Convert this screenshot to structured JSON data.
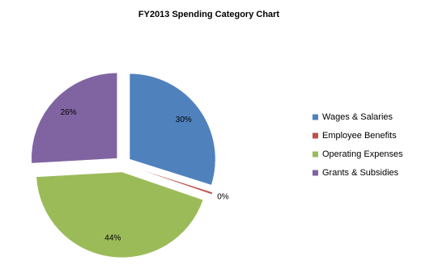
{
  "chart_data": {
    "type": "pie",
    "title": "FY2013 Spending Category Chart",
    "categories": [
      "Wages & Salaries",
      "Employee Benefits",
      "Operating Expenses",
      "Grants & Subsidies"
    ],
    "values": [
      30,
      0.4,
      44,
      26
    ],
    "value_labels": [
      "30%",
      "0%",
      "44%",
      "26%"
    ],
    "colors": [
      "#4f81bd",
      "#c0504d",
      "#9bbb59",
      "#8064a2"
    ],
    "legend": "right"
  }
}
